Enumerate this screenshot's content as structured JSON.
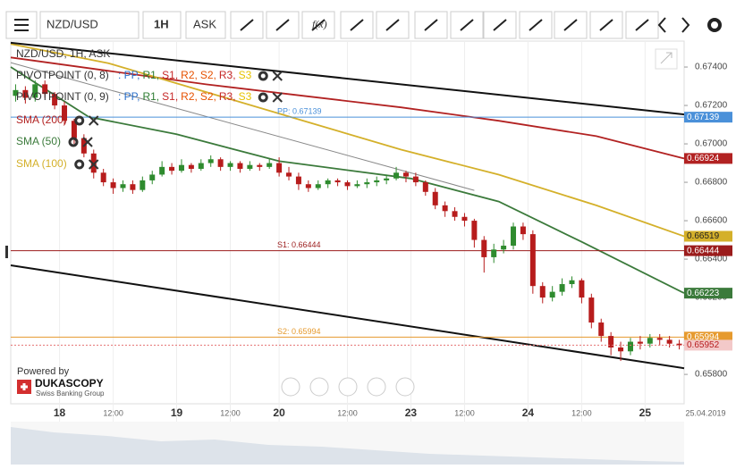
{
  "chart_data": {
    "type": "candlestick",
    "toolbar": {
      "symbol": "NZD/USD",
      "period": "1H",
      "side": "ASK",
      "fx": "f(x)"
    },
    "title": "NZD/USD, 1H, ASK",
    "indicators": [
      "PIVOTPOINT (0, 8)",
      "PIVOTPOINT (0, 9)"
    ],
    "pivot_legend": [
      {
        "text": ": PP,",
        "color": "#2a6fc9"
      },
      {
        "text": "R1,",
        "color": "#2e7d32"
      },
      {
        "text": "S1,",
        "color": "#c62828"
      },
      {
        "text": "R2,",
        "color": "#e65100"
      },
      {
        "text": "S2,",
        "color": "#e65100"
      },
      {
        "text": "R3,",
        "color": "#c62828"
      },
      {
        "text": "S3",
        "color": "#e6c200"
      }
    ],
    "ylim": [
      0.65647,
      0.67535
    ],
    "yticks": [
      {
        "value": 0.674,
        "label": "0.67400"
      },
      {
        "value": 0.672,
        "label": "0.67200"
      },
      {
        "value": 0.67,
        "label": "0.67000"
      },
      {
        "value": 0.668,
        "label": "0.66800"
      },
      {
        "value": 0.666,
        "label": "0.66600"
      },
      {
        "value": 0.664,
        "label": "0.66400"
      },
      {
        "value": 0.662,
        "label": "0.66200"
      },
      {
        "value": 0.66,
        "label": "0.66000"
      },
      {
        "value": 0.658,
        "label": "0.65800"
      }
    ],
    "xlim": [
      0,
      138
    ],
    "xticks": [
      {
        "value": 10,
        "label": "18"
      },
      {
        "value": 21,
        "label": "12:00"
      },
      {
        "value": 34,
        "label": "19"
      },
      {
        "value": 45,
        "label": "12:00"
      },
      {
        "value": 55,
        "label": "20"
      },
      {
        "value": 69,
        "label": "12:00"
      },
      {
        "value": 82,
        "label": "23"
      },
      {
        "value": 93,
        "label": "12:00"
      },
      {
        "value": 106,
        "label": "24"
      },
      {
        "value": 117,
        "label": "12:00"
      },
      {
        "value": 130,
        "label": "25"
      }
    ],
    "date_label": "25.04.2019",
    "up_color": "#2e8b2e",
    "down_color": "#b71c1c",
    "x": [
      1,
      3,
      5,
      7,
      9,
      11,
      13,
      15,
      17,
      19,
      21,
      23,
      25,
      27,
      29,
      31,
      33,
      35,
      37,
      39,
      41,
      43,
      45,
      47,
      49,
      51,
      53,
      55,
      57,
      59,
      61,
      63,
      65,
      67,
      69,
      71,
      73,
      75,
      77,
      79,
      81,
      83,
      85,
      87,
      89,
      91,
      93,
      95,
      97,
      99,
      101,
      103,
      105,
      107,
      109,
      111,
      113,
      115,
      117,
      119,
      121,
      123,
      125,
      127,
      129,
      131,
      133,
      135,
      137
    ],
    "candles": [
      [
        0.6725,
        0.6731,
        0.6722,
        0.6728
      ],
      [
        0.6728,
        0.673,
        0.6721,
        0.6724
      ],
      [
        0.6724,
        0.6733,
        0.6722,
        0.6731
      ],
      [
        0.6731,
        0.6733,
        0.6724,
        0.6726
      ],
      [
        0.6726,
        0.6727,
        0.6718,
        0.672
      ],
      [
        0.672,
        0.6722,
        0.671,
        0.6712
      ],
      [
        0.6712,
        0.6713,
        0.67,
        0.6703
      ],
      [
        0.6703,
        0.6705,
        0.6693,
        0.6695
      ],
      [
        0.6695,
        0.6697,
        0.6682,
        0.6685
      ],
      [
        0.6685,
        0.6687,
        0.6678,
        0.668
      ],
      [
        0.668,
        0.6682,
        0.6674,
        0.6677
      ],
      [
        0.6677,
        0.6681,
        0.6675,
        0.6679
      ],
      [
        0.6679,
        0.6681,
        0.6674,
        0.6676
      ],
      [
        0.6676,
        0.6683,
        0.6675,
        0.6681
      ],
      [
        0.6681,
        0.6686,
        0.6679,
        0.6684
      ],
      [
        0.6684,
        0.6691,
        0.6683,
        0.6688
      ],
      [
        0.6688,
        0.669,
        0.6684,
        0.6686
      ],
      [
        0.6686,
        0.6692,
        0.6685,
        0.6689
      ],
      [
        0.6689,
        0.669,
        0.6685,
        0.6687
      ],
      [
        0.6687,
        0.6692,
        0.6686,
        0.669
      ],
      [
        0.669,
        0.6694,
        0.6688,
        0.6692
      ],
      [
        0.6692,
        0.6693,
        0.6686,
        0.6688
      ],
      [
        0.6688,
        0.6691,
        0.6686,
        0.669
      ],
      [
        0.669,
        0.6691,
        0.6685,
        0.6687
      ],
      [
        0.6687,
        0.6691,
        0.6686,
        0.6689
      ],
      [
        0.6689,
        0.669,
        0.6686,
        0.6688
      ],
      [
        0.6688,
        0.6692,
        0.6687,
        0.669
      ],
      [
        0.669,
        0.6693,
        0.6683,
        0.6685
      ],
      [
        0.6685,
        0.6688,
        0.6681,
        0.6683
      ],
      [
        0.6683,
        0.6685,
        0.6676,
        0.6679
      ],
      [
        0.6679,
        0.6681,
        0.6675,
        0.6677
      ],
      [
        0.6677,
        0.6681,
        0.6676,
        0.6679
      ],
      [
        0.6679,
        0.6682,
        0.6677,
        0.6681
      ],
      [
        0.6681,
        0.6682,
        0.6678,
        0.668
      ],
      [
        0.668,
        0.6681,
        0.6676,
        0.6678
      ],
      [
        0.6678,
        0.6681,
        0.6677,
        0.6679
      ],
      [
        0.6679,
        0.6682,
        0.6677,
        0.668
      ],
      [
        0.668,
        0.6683,
        0.6678,
        0.6681
      ],
      [
        0.6681,
        0.6684,
        0.6679,
        0.6682
      ],
      [
        0.6682,
        0.6688,
        0.6681,
        0.6685
      ],
      [
        0.6685,
        0.6686,
        0.668,
        0.6683
      ],
      [
        0.6683,
        0.6685,
        0.6678,
        0.668
      ],
      [
        0.668,
        0.6681,
        0.6673,
        0.6675
      ],
      [
        0.6675,
        0.6677,
        0.6666,
        0.6668
      ],
      [
        0.6668,
        0.667,
        0.6662,
        0.6665
      ],
      [
        0.6665,
        0.6667,
        0.666,
        0.6662
      ],
      [
        0.6662,
        0.6664,
        0.6657,
        0.666
      ],
      [
        0.666,
        0.6661,
        0.6646,
        0.665
      ],
      [
        0.665,
        0.6652,
        0.6633,
        0.6641
      ],
      [
        0.6641,
        0.6648,
        0.6638,
        0.6645
      ],
      [
        0.6645,
        0.665,
        0.6643,
        0.6647
      ],
      [
        0.6647,
        0.6659,
        0.6645,
        0.6657
      ],
      [
        0.6657,
        0.6659,
        0.665,
        0.6653
      ],
      [
        0.6653,
        0.6655,
        0.6622,
        0.6626
      ],
      [
        0.6626,
        0.6628,
        0.6617,
        0.662
      ],
      [
        0.662,
        0.6626,
        0.6618,
        0.6623
      ],
      [
        0.6623,
        0.663,
        0.6621,
        0.6627
      ],
      [
        0.6627,
        0.6631,
        0.6625,
        0.6629
      ],
      [
        0.6629,
        0.663,
        0.6617,
        0.662
      ],
      [
        0.662,
        0.6622,
        0.6604,
        0.6607
      ],
      [
        0.6607,
        0.6609,
        0.6597,
        0.66
      ],
      [
        0.66,
        0.6602,
        0.659,
        0.6594
      ],
      [
        0.6594,
        0.6597,
        0.6587,
        0.6592
      ],
      [
        0.6592,
        0.6599,
        0.659,
        0.6597
      ],
      [
        0.6597,
        0.66,
        0.6593,
        0.6596
      ],
      [
        0.6596,
        0.6601,
        0.6594,
        0.6599
      ],
      [
        0.6599,
        0.6601,
        0.6595,
        0.6598
      ],
      [
        0.6598,
        0.66,
        0.6594,
        0.6596
      ],
      [
        0.6596,
        0.6598,
        0.6593,
        0.65952
      ]
    ],
    "series": [
      {
        "name": "SMA (200)",
        "color": "#b22222",
        "x": [
          0,
          20,
          40,
          60,
          80,
          100,
          120,
          138
        ],
        "values": [
          0.6745,
          0.6738,
          0.6731,
          0.6725,
          0.6719,
          0.6712,
          0.6704,
          0.66924
        ]
      },
      {
        "name": "SMA (50)",
        "color": "#3b7a3b",
        "x": [
          0,
          16,
          34,
          55,
          82,
          100,
          117,
          138
        ],
        "values": [
          0.674,
          0.6714,
          0.6705,
          0.6691,
          0.6682,
          0.667,
          0.6649,
          0.66223
        ]
      },
      {
        "name": "SMA (100)",
        "color": "#d4b02a",
        "x": [
          0,
          20,
          40,
          60,
          80,
          100,
          120,
          138
        ],
        "values": [
          0.6752,
          0.6742,
          0.6727,
          0.6712,
          0.6697,
          0.6684,
          0.6668,
          0.66519
        ]
      }
    ],
    "trendlines": [
      {
        "color": "#111111",
        "x": [
          0,
          138
        ],
        "values": [
          0.67526,
          0.67153
        ]
      },
      {
        "color": "#111111",
        "x": [
          0,
          138
        ],
        "values": [
          0.66368,
          0.65832
        ]
      },
      {
        "color": "#888888",
        "x": [
          0,
          95
        ],
        "values": [
          0.67423,
          0.66758
        ]
      }
    ],
    "pivots": [
      {
        "label": "PP: 0.67139",
        "value": 0.67139,
        "color": "#4a90d9"
      },
      {
        "label": "S1: 0.66444",
        "value": 0.66444,
        "color": "#9b1c1c"
      },
      {
        "label": "S2: 0.65994",
        "value": 0.65994,
        "color": "#e69a2e"
      }
    ],
    "current_color": "#e57373",
    "powered_by": "Powered by",
    "brand": "DUKASCOPY",
    "brand_sub": "Swiss Banking Group"
  }
}
